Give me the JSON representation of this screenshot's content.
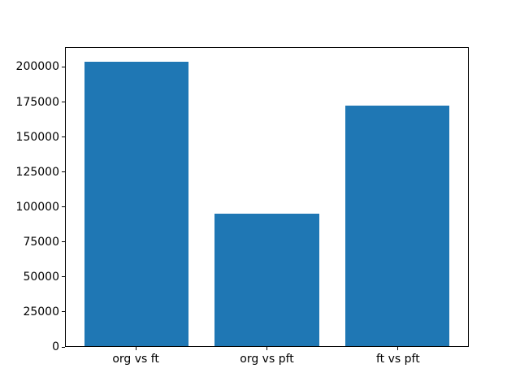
{
  "figure": {
    "background": "#ffffff",
    "spine_color": "#000000",
    "tick_color": "#000000",
    "label_color": "#000000"
  },
  "chart_data": {
    "type": "bar",
    "title": "",
    "xlabel": "",
    "ylabel": "",
    "categories": [
      "org vs ft",
      "org vs pft",
      "ft vs pft"
    ],
    "values": [
      204000,
      95000,
      173000
    ],
    "bar_color": "#1f77b4",
    "ylim": [
      0,
      214200
    ],
    "yticks": [
      0,
      25000,
      50000,
      75000,
      100000,
      125000,
      150000,
      175000,
      200000
    ],
    "xtick_labels": [
      "org vs ft",
      "org vs pft",
      "ft vs pft"
    ],
    "grid": false,
    "legend_position": "none"
  }
}
